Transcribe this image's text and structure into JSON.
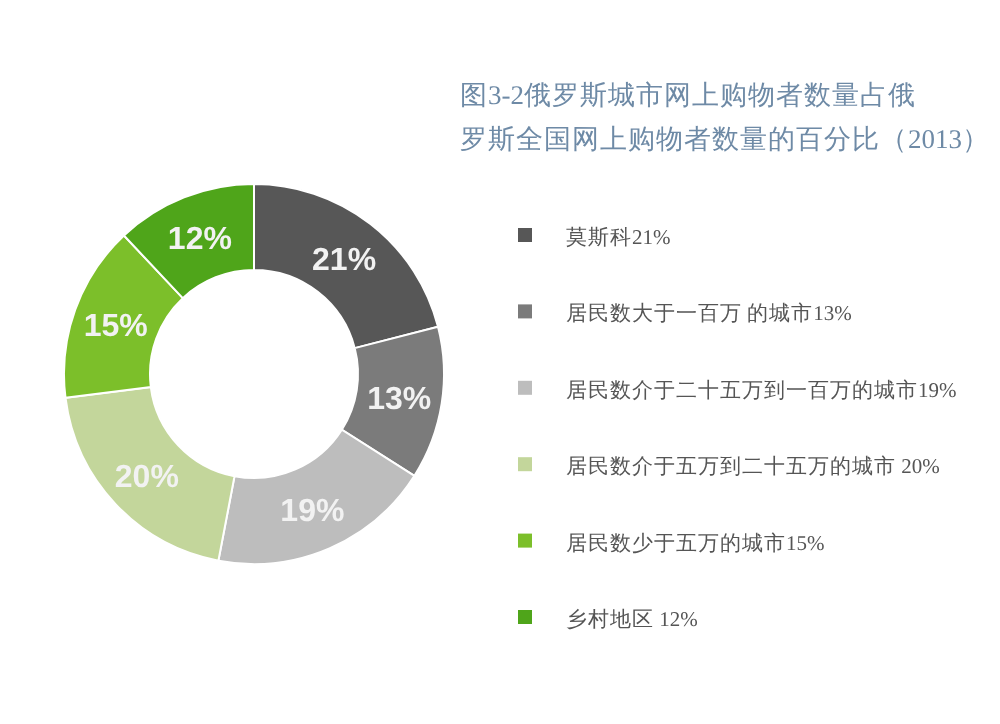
{
  "chart_data": {
    "type": "donut",
    "title": "图3-2俄罗斯城市网上购物者数量占俄罗斯全国网上购物者数量的百分比（2013）",
    "categories": [
      "莫斯科21%",
      "居民数大于一百万  的城市13%",
      "居民数介于二十五万到一百万的城市19%",
      "居民数介于五万到二十五万的城市  20%",
      "居民数少于五万的城市15%",
      "乡村地区  12%"
    ],
    "values": [
      21,
      13,
      19,
      20,
      15,
      12
    ],
    "value_labels": [
      "21%",
      "13%",
      "19%",
      "20%",
      "15%",
      "12%"
    ],
    "colors": [
      "#575757",
      "#7b7b7b",
      "#bdbdbd",
      "#c3d69b",
      "#7cbf2a",
      "#4fa51a"
    ],
    "legend": "right"
  }
}
